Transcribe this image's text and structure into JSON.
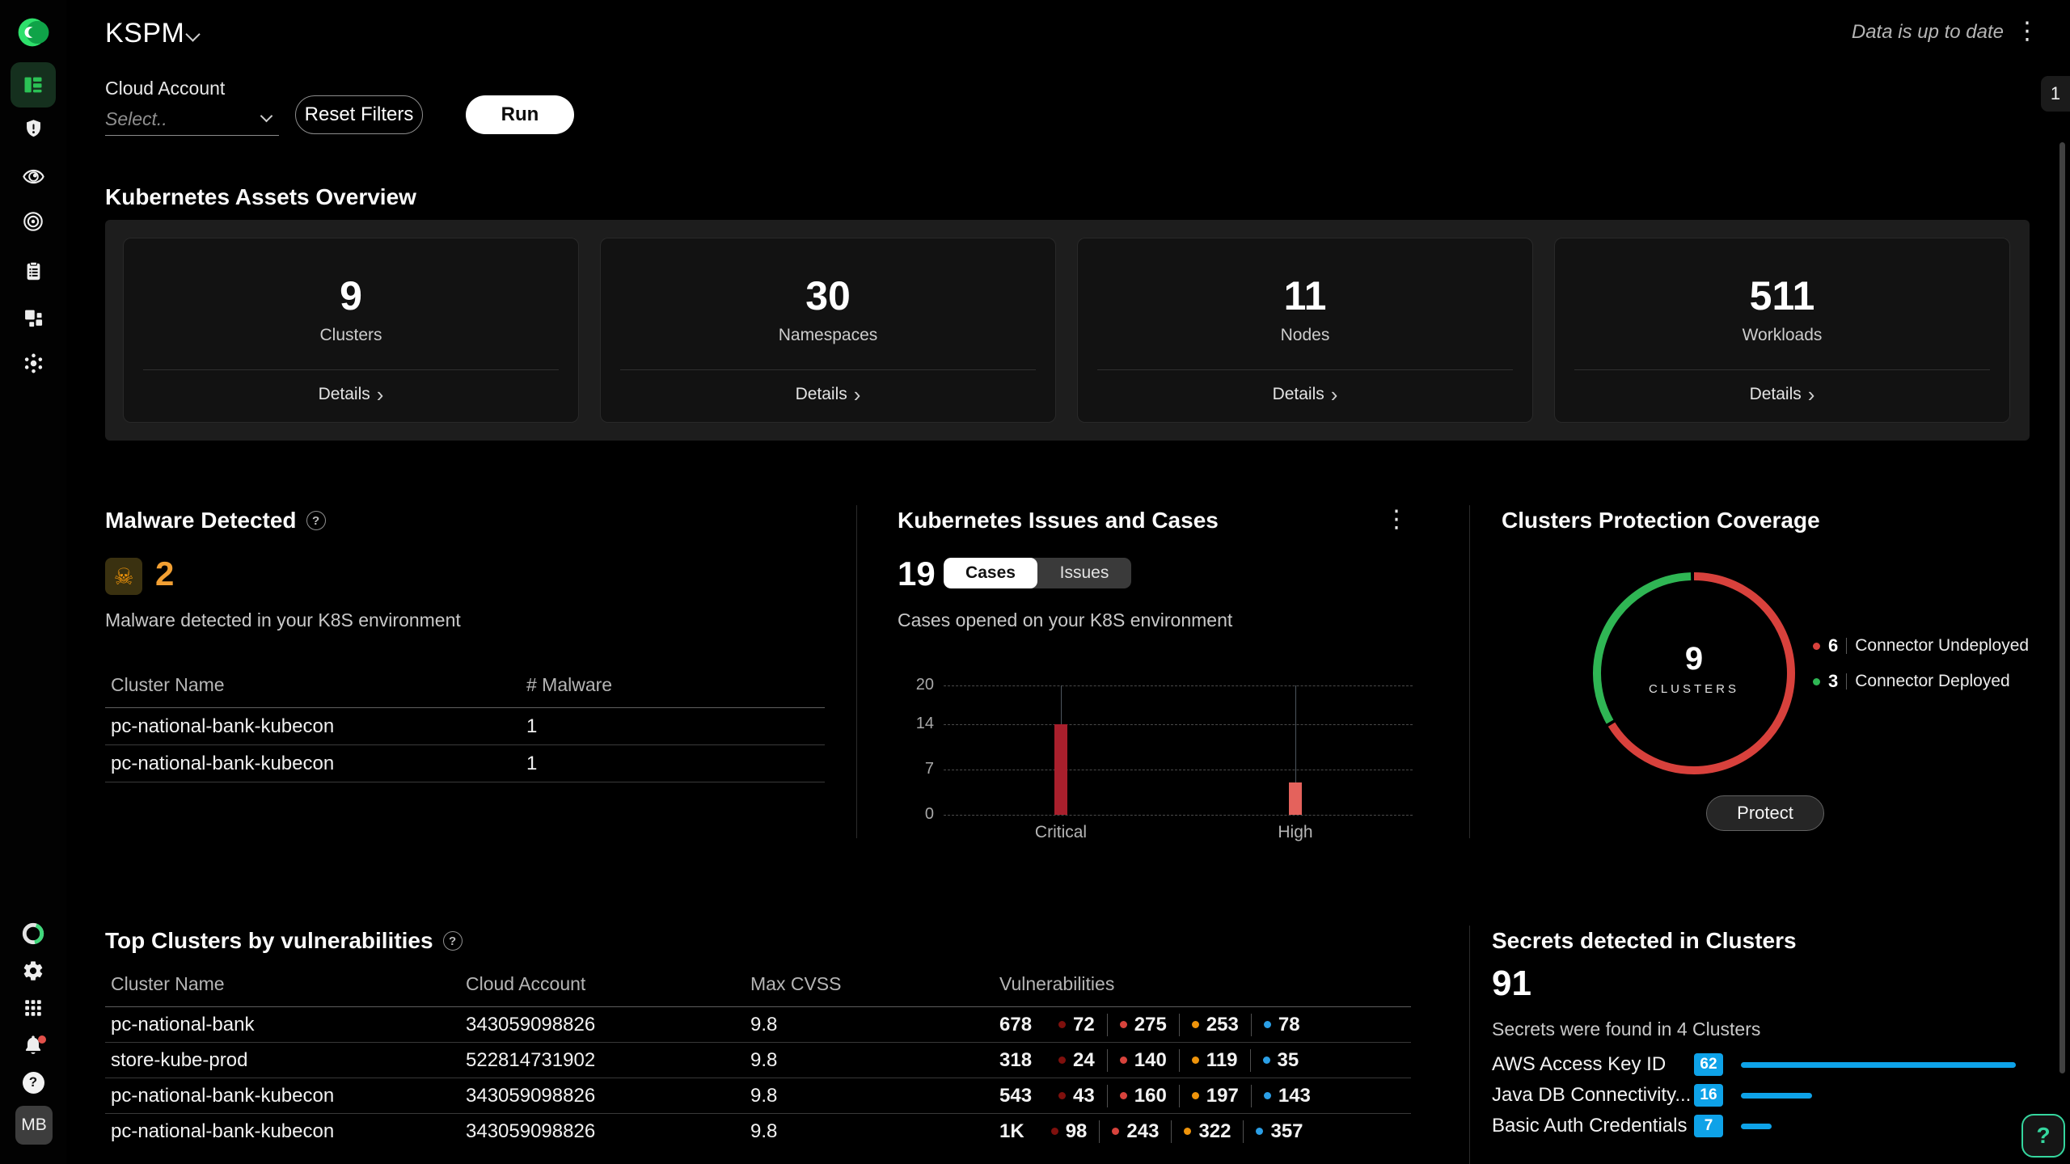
{
  "header": {
    "title": "KSPM",
    "status": "Data is up to date",
    "side_tab": "1"
  },
  "filters": {
    "cloud_account_label": "Cloud Account",
    "select_placeholder": "Select..",
    "reset_label": "Reset Filters",
    "run_label": "Run"
  },
  "assets_overview": {
    "title": "Kubernetes Assets Overview",
    "cards": [
      {
        "value": "9",
        "label": "Clusters",
        "details_label": "Details"
      },
      {
        "value": "30",
        "label": "Namespaces",
        "details_label": "Details"
      },
      {
        "value": "11",
        "label": "Nodes",
        "details_label": "Details"
      },
      {
        "value": "511",
        "label": "Workloads",
        "details_label": "Details"
      }
    ]
  },
  "malware": {
    "title": "Malware Detected",
    "count": "2",
    "description": "Malware detected in your K8S environment",
    "headers": [
      "Cluster Name",
      "# Malware"
    ],
    "rows": [
      {
        "cluster": "pc-national-bank-kubecon",
        "count": "1"
      },
      {
        "cluster": "pc-national-bank-kubecon",
        "count": "1"
      }
    ]
  },
  "issues_cases": {
    "title": "Kubernetes Issues and Cases",
    "count": "19",
    "tabs": [
      "Cases",
      "Issues"
    ],
    "active_tab": "Cases",
    "description": "Cases opened on your K8S environment"
  },
  "protection": {
    "title": "Clusters Protection Coverage",
    "center_value": "9",
    "center_label": "CLUSTERS",
    "button_label": "Protect"
  },
  "top_clusters": {
    "title": "Top Clusters by vulnerabilities",
    "headers": [
      "Cluster Name",
      "Cloud Account",
      "Max CVSS",
      "Vulnerabilities"
    ],
    "severity_colors": [
      "#7f100d",
      "#d8433c",
      "#ef940b",
      "#2b9fe6"
    ],
    "rows": [
      {
        "cluster": "pc-national-bank",
        "account": "343059098826",
        "cvss": "9.8",
        "total": "678",
        "counts": [
          {
            "value": "72"
          },
          {
            "value": "275"
          },
          {
            "value": "253"
          },
          {
            "value": "78"
          }
        ]
      },
      {
        "cluster": "store-kube-prod",
        "account": "522814731902",
        "cvss": "9.8",
        "total": "318",
        "counts": [
          {
            "value": "24"
          },
          {
            "value": "140"
          },
          {
            "value": "119"
          },
          {
            "value": "35"
          }
        ]
      },
      {
        "cluster": "pc-national-bank-kubecon",
        "account": "343059098826",
        "cvss": "9.8",
        "total": "543",
        "counts": [
          {
            "value": "43"
          },
          {
            "value": "160"
          },
          {
            "value": "197"
          },
          {
            "value": "143"
          }
        ]
      },
      {
        "cluster": "pc-national-bank-kubecon",
        "account": "343059098826",
        "cvss": "9.8",
        "total": "1K",
        "counts": [
          {
            "value": "98"
          },
          {
            "value": "243"
          },
          {
            "value": "322"
          },
          {
            "value": "357"
          }
        ]
      }
    ]
  },
  "secrets": {
    "title": "Secrets detected in Clusters",
    "count": "91",
    "description": "Secrets were found in 4 Clusters"
  },
  "sidebar": {
    "active_icon": "dashboard",
    "top_icons": [
      "dashboard",
      "shield-alert",
      "eye",
      "target",
      "clipboard",
      "components",
      "cluster-hub"
    ],
    "bottom_icons": [
      "brand-ring",
      "settings-gear",
      "apps-grid",
      "notifications-bell",
      "help",
      "avatar"
    ],
    "avatar": "MB"
  },
  "colors": {
    "accent_green": "#2bc155",
    "bar_critical": "#a81f2c",
    "bar_high": "#e4625c",
    "donut_red": "#d8413c",
    "donut_green": "#2fb654",
    "secrets_blue": "#0ea2e8",
    "malware_orange": "#f2a033"
  },
  "chart_data": [
    {
      "type": "bar",
      "title": "Cases opened on your K8S environment",
      "categories": [
        "Critical",
        "High"
      ],
      "values": [
        14,
        5
      ],
      "bar_colors": [
        "#a81f2c",
        "#e4625c"
      ],
      "yticks": [
        0,
        7,
        14,
        20
      ],
      "ylim": [
        0,
        20
      ],
      "grid": "horizontal-dashed",
      "xlabel": "",
      "ylabel": ""
    },
    {
      "type": "pie",
      "donut": true,
      "title": "Clusters Protection Coverage",
      "labels": [
        "Connector Undeployed",
        "Connector Deployed"
      ],
      "values": [
        6,
        3
      ],
      "colors": [
        "#d8413c",
        "#2fb654"
      ],
      "center_text": "9 CLUSTERS",
      "legend_position": "right"
    },
    {
      "type": "bar",
      "orientation": "horizontal",
      "title": "Secrets detected in Clusters",
      "categories": [
        "AWS Access Key ID",
        "Java DB Connectivity...",
        "Basic Auth Credentials"
      ],
      "values": [
        62,
        16,
        7
      ],
      "color": "#0ea2e8"
    }
  ]
}
